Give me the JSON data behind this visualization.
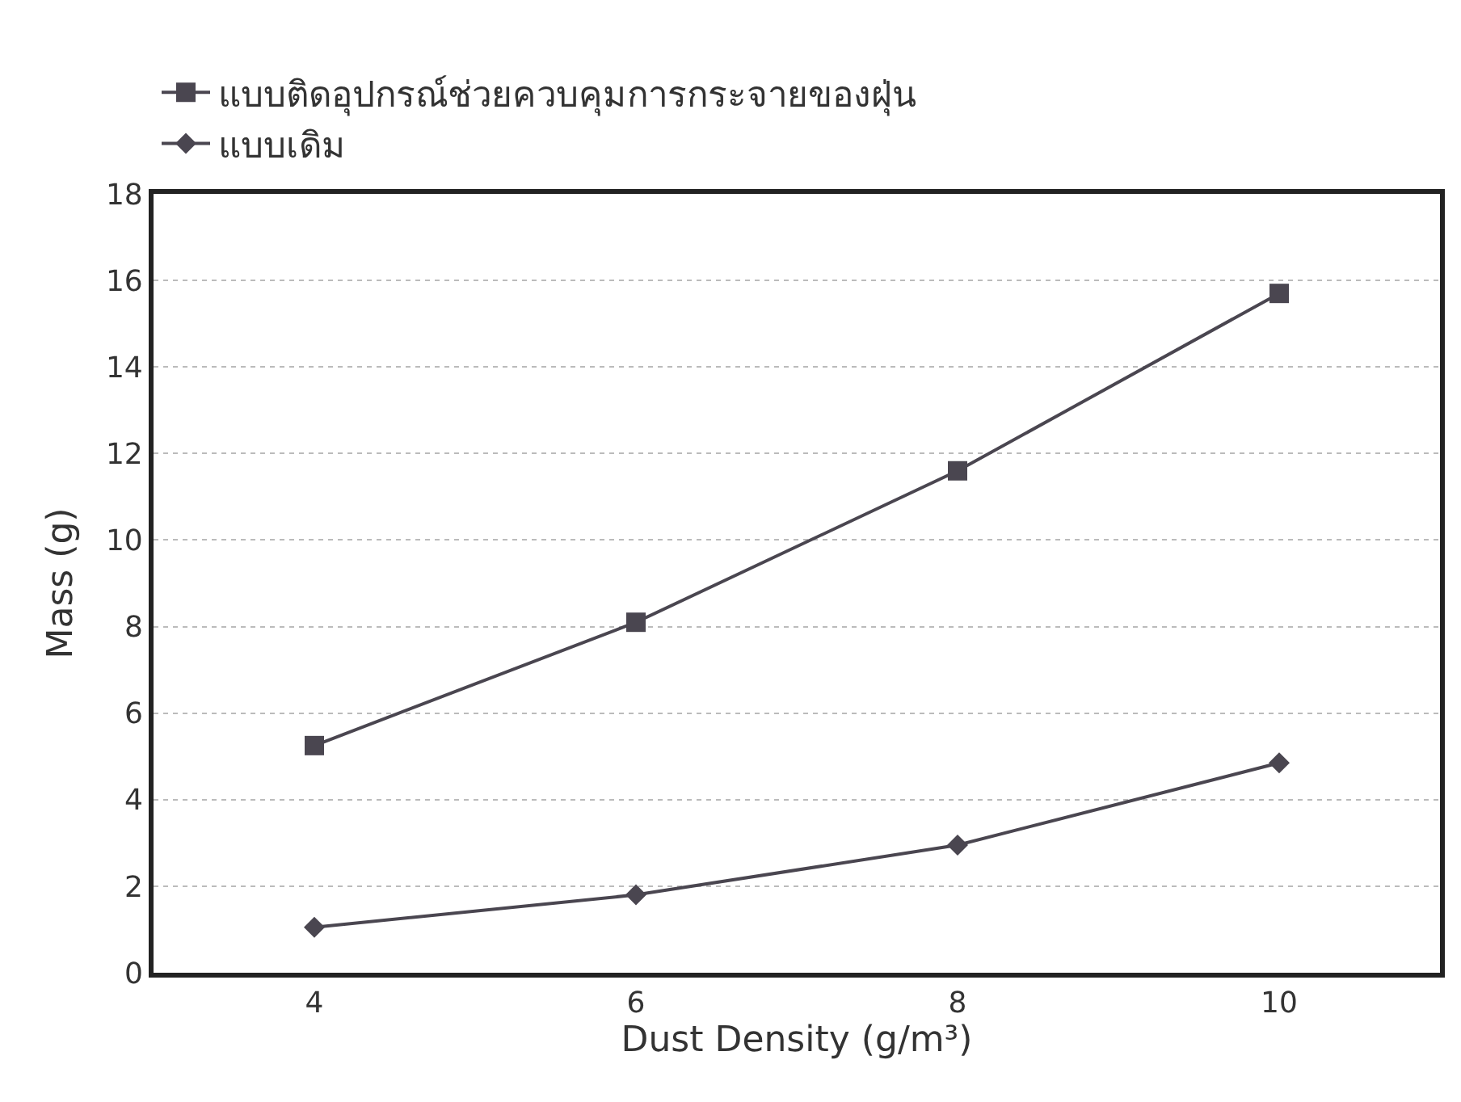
{
  "chart_data": {
    "type": "line",
    "xlabel": "Dust Density (g/m³)",
    "ylabel": "Mass (g)",
    "categories": [
      "4",
      "6",
      "8",
      "10"
    ],
    "series": [
      {
        "name": "แบบติดอุปกรณ์ช่วยควบคุมการกระจายของฝุ่น",
        "color": "#4a4650",
        "marker": "square",
        "values": [
          5.25,
          8.1,
          11.6,
          15.7
        ]
      },
      {
        "name": "แบบเดิม",
        "color": "#4a4650",
        "marker": "diamond",
        "values": [
          1.05,
          1.8,
          2.95,
          4.85
        ]
      }
    ],
    "ylim": [
      0,
      18
    ],
    "yticks": [
      0,
      2,
      4,
      6,
      8,
      10,
      12,
      14,
      16,
      18
    ],
    "grid": "y",
    "legend": "top left",
    "line_style": "solid"
  }
}
